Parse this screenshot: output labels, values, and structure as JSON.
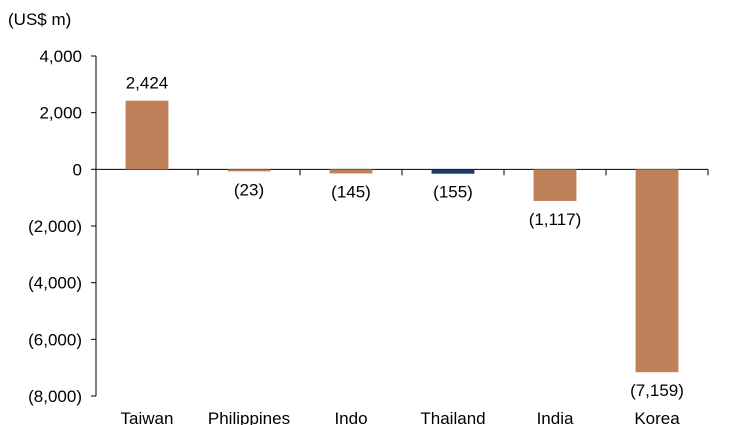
{
  "chart_data": {
    "type": "bar",
    "unit_label": "(US$ m)",
    "categories": [
      "Taiwan",
      "Philippines",
      "Indo",
      "Thailand",
      "India",
      "Korea"
    ],
    "values": [
      2424,
      -23,
      -145,
      -155,
      -1117,
      -7159
    ],
    "data_labels": [
      "2,424",
      "(23)",
      "(145)",
      "(155)",
      "(1,117)",
      "(7,159)"
    ],
    "bar_colors": [
      "#C0805A",
      "#C0805A",
      "#C0805A",
      "#1F3A68",
      "#C0805A",
      "#C0805A"
    ],
    "ylim": [
      -8000,
      4000
    ],
    "yticks": [
      4000,
      2000,
      0,
      -2000,
      -4000,
      -6000,
      -8000
    ],
    "ytick_labels": [
      "4,000",
      "2,000",
      "0",
      "(2,000)",
      "(4,000)",
      "(6,000)",
      "(8,000)"
    ],
    "title": "",
    "xlabel": "",
    "ylabel": "",
    "grid": false,
    "legend": "none"
  }
}
